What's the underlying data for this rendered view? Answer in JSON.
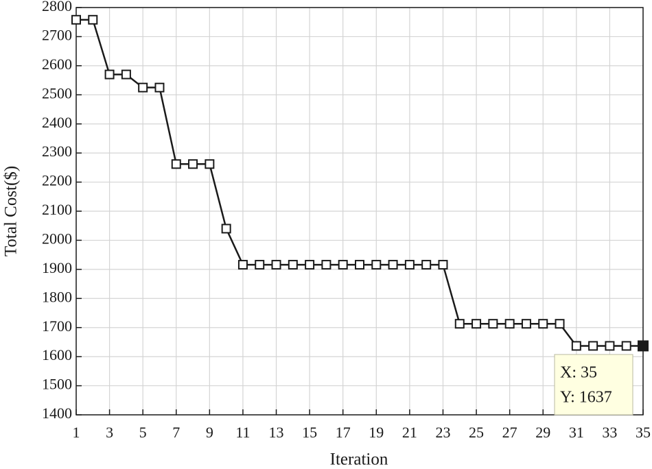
{
  "chart_data": {
    "type": "line",
    "x_label": "Iteration",
    "y_label": "Total Cost($)",
    "x": [
      1,
      2,
      3,
      4,
      5,
      6,
      7,
      8,
      9,
      10,
      11,
      12,
      13,
      14,
      15,
      16,
      17,
      18,
      19,
      20,
      21,
      22,
      23,
      24,
      25,
      26,
      27,
      28,
      29,
      30,
      31,
      32,
      33,
      34,
      35
    ],
    "series": [
      {
        "color": "#1a1a1a",
        "marker": "square",
        "values": [
          2758,
          2758,
          2570,
          2570,
          2525,
          2525,
          2262,
          2262,
          2262,
          2040,
          1916,
          1916,
          1916,
          1916,
          1916,
          1916,
          1916,
          1916,
          1916,
          1916,
          1916,
          1916,
          1916,
          1713,
          1713,
          1713,
          1713,
          1713,
          1713,
          1713,
          1637,
          1637,
          1637,
          1637,
          1637
        ]
      }
    ],
    "xlim": [
      1,
      35
    ],
    "xticks": [
      1,
      3,
      5,
      7,
      9,
      11,
      13,
      15,
      17,
      19,
      21,
      23,
      25,
      27,
      29,
      31,
      33,
      35
    ],
    "ylim": [
      1400,
      2800
    ],
    "yticks": [
      1400,
      1500,
      1600,
      1700,
      1800,
      1900,
      2000,
      2100,
      2200,
      2300,
      2400,
      2500,
      2600,
      2700,
      2800
    ],
    "grid": true,
    "datatip": {
      "x": 35,
      "y": 1637,
      "lines": [
        "X: 35",
        "Y: 1637"
      ]
    }
  }
}
